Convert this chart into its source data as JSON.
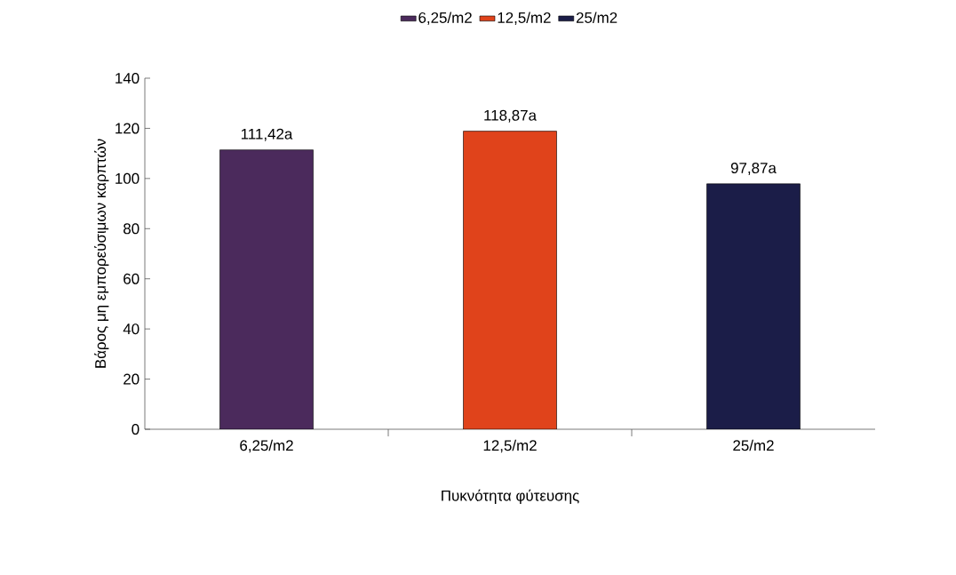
{
  "chart_data": {
    "type": "bar",
    "xlabel": "Πυκνότητα φύτευσης",
    "ylabel": "Βάρος μη εμπορεύσιμων καρπτών",
    "categories": [
      "6,25/m2",
      "12,5/m2",
      "25/m2"
    ],
    "series": [
      {
        "name": "6,25/m2",
        "color": "#4b2a5c",
        "values": [
          111.42,
          null,
          null
        ],
        "value_labels": [
          "111,42a",
          null,
          null
        ]
      },
      {
        "name": "12,5/m2",
        "color": "#e0431b",
        "values": [
          null,
          118.87,
          null
        ],
        "value_labels": [
          null,
          "118,87a",
          null
        ]
      },
      {
        "name": "25/m2",
        "color": "#1b1d48",
        "values": [
          null,
          null,
          97.87
        ],
        "value_labels": [
          null,
          null,
          "97,87a"
        ]
      }
    ],
    "ylim": [
      0,
      140
    ],
    "yticks": [
      0,
      20,
      40,
      60,
      80,
      100,
      120,
      140
    ],
    "grid": false,
    "legend": "top"
  }
}
